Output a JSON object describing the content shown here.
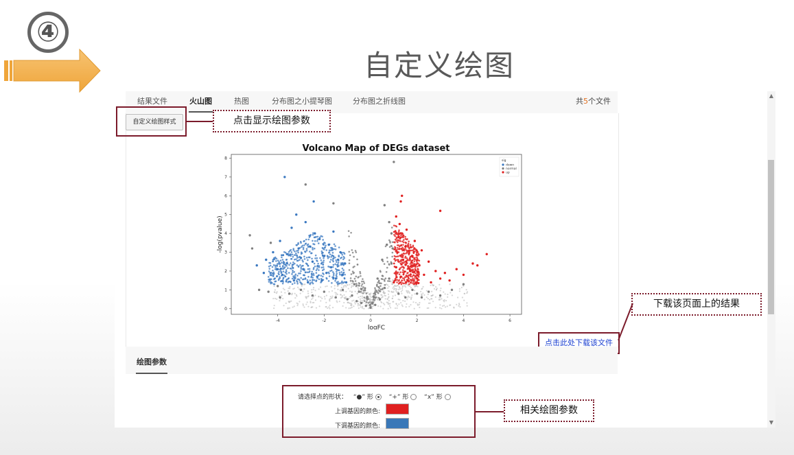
{
  "slide": {
    "step_number": "④",
    "title": "自定义绘图"
  },
  "tabs": [
    {
      "label": "结果文件",
      "active": false
    },
    {
      "label": "火山图",
      "active": true
    },
    {
      "label": "热图",
      "active": false
    },
    {
      "label": "分布图之小提琴图",
      "active": false
    },
    {
      "label": "分布图之折线图",
      "active": false
    }
  ],
  "file_count": {
    "prefix": "共",
    "count": "5",
    "suffix": "个文件"
  },
  "custom_button_label": "自定义绘图样式",
  "callouts": {
    "show_params": "点击显示绘图参数",
    "download_result": "下载该页面上的结果",
    "related_params": "相关绘图参数"
  },
  "download_link": "点击此处下载该文件",
  "params_section": {
    "title": "绘图参数",
    "shape_label": "请选择点的形状：",
    "shape_options": [
      {
        "label": "“●” 形",
        "checked": true
      },
      {
        "label": "“+” 形",
        "checked": false
      },
      {
        "label": "“x” 形",
        "checked": false
      }
    ],
    "up_color_label": "上调基因的颜色:",
    "down_color_label": "下调基因的颜色:",
    "up_color": "#e02020",
    "down_color": "#3a78b8"
  },
  "chart_data": {
    "type": "scatter",
    "title": "Volcano Map of DEGs dataset",
    "xlabel": "logFC",
    "ylabel": "-log(pvalue)",
    "xlim": [
      -6,
      6.5
    ],
    "ylim": [
      -0.3,
      8.2
    ],
    "xticks": [
      "-4",
      "-2",
      "0",
      "2",
      "4",
      "6"
    ],
    "xtick_values": [
      -4,
      -2,
      0,
      2,
      4,
      6
    ],
    "yticks": [
      "0",
      "1",
      "2",
      "3",
      "4",
      "5",
      "6",
      "7",
      "8"
    ],
    "ytick_values": [
      0,
      1,
      2,
      3,
      4,
      5,
      6,
      7,
      8
    ],
    "legend_title": "sig",
    "legend_position": "top-right",
    "series": [
      {
        "name": "down",
        "color": "#3a78c0",
        "points": [
          [
            -4.9,
            2.3
          ],
          [
            -4.5,
            2.6
          ],
          [
            -4.2,
            3.0
          ],
          [
            -3.9,
            3.6
          ],
          [
            -3.6,
            2.9
          ],
          [
            -3.4,
            4.3
          ],
          [
            -3.2,
            5.0
          ],
          [
            -3.1,
            3.2
          ],
          [
            -2.9,
            2.1
          ],
          [
            -2.8,
            4.6
          ],
          [
            -2.6,
            3.3
          ],
          [
            -2.5,
            2.5
          ],
          [
            -2.4,
            4.0
          ],
          [
            -2.3,
            1.7
          ],
          [
            -2.2,
            3.7
          ],
          [
            -2.0,
            2.8
          ],
          [
            -1.9,
            1.9
          ],
          [
            -1.8,
            3.4
          ],
          [
            -1.7,
            2.2
          ],
          [
            -1.6,
            4.1
          ],
          [
            -1.5,
            1.6
          ],
          [
            -1.4,
            2.6
          ],
          [
            -1.3,
            3.0
          ],
          [
            -1.2,
            1.8
          ],
          [
            -1.1,
            2.4
          ],
          [
            -1.05,
            1.4
          ],
          [
            -3.8,
            1.8
          ],
          [
            -4.0,
            2.1
          ],
          [
            -3.3,
            1.5
          ],
          [
            -2.7,
            1.4
          ],
          [
            -2.1,
            1.5
          ],
          [
            -3.0,
            2.7
          ],
          [
            -4.6,
            1.9
          ],
          [
            -2.45,
            5.7
          ],
          [
            -3.7,
            7.0
          ]
        ]
      },
      {
        "name": "normal",
        "color": "#808080",
        "points": [
          [
            -5.2,
            3.9
          ],
          [
            -4.8,
            1.0
          ],
          [
            -4.4,
            0.9
          ],
          [
            -4.0,
            1.2
          ],
          [
            -3.5,
            0.8
          ],
          [
            -3.0,
            1.0
          ],
          [
            -2.5,
            0.7
          ],
          [
            -2.0,
            0.9
          ],
          [
            -1.5,
            0.6
          ],
          [
            -1.2,
            1.0
          ],
          [
            -1.0,
            0.5
          ],
          [
            -0.8,
            0.7
          ],
          [
            -0.6,
            0.4
          ],
          [
            -0.4,
            0.3
          ],
          [
            -0.2,
            0.15
          ],
          [
            0.0,
            0.05
          ],
          [
            0.2,
            0.2
          ],
          [
            0.4,
            0.5
          ],
          [
            0.6,
            1.1
          ],
          [
            0.8,
            1.6
          ],
          [
            0.9,
            2.4
          ],
          [
            0.95,
            3.2
          ],
          [
            0.9,
            4.0
          ],
          [
            0.8,
            4.6
          ],
          [
            0.6,
            5.5
          ],
          [
            0.5,
            2.6
          ],
          [
            0.3,
            1.6
          ],
          [
            0.7,
            3.4
          ],
          [
            -0.7,
            1.3
          ],
          [
            -0.5,
            0.9
          ],
          [
            1.2,
            0.8
          ],
          [
            1.5,
            0.6
          ],
          [
            2.0,
            0.8
          ],
          [
            2.5,
            0.9
          ],
          [
            3.0,
            0.7
          ],
          [
            3.5,
            1.0
          ],
          [
            1.8,
            1.0
          ],
          [
            2.2,
            0.6
          ],
          [
            -2.8,
            6.6
          ],
          [
            1.0,
            7.8
          ],
          [
            -1.6,
            5.6
          ],
          [
            -4.3,
            3.5
          ],
          [
            -3.9,
            0.6
          ],
          [
            4.0,
            1.3
          ],
          [
            -5.1,
            3.2
          ]
        ]
      },
      {
        "name": "up",
        "color": "#e02020",
        "points": [
          [
            1.0,
            1.4
          ],
          [
            1.1,
            2.2
          ],
          [
            1.15,
            3.0
          ],
          [
            1.2,
            3.8
          ],
          [
            1.25,
            4.5
          ],
          [
            1.3,
            1.7
          ],
          [
            1.4,
            2.6
          ],
          [
            1.5,
            3.3
          ],
          [
            1.55,
            4.2
          ],
          [
            1.6,
            1.5
          ],
          [
            1.7,
            2.0
          ],
          [
            1.8,
            2.8
          ],
          [
            1.9,
            3.6
          ],
          [
            2.0,
            1.6
          ],
          [
            2.1,
            2.3
          ],
          [
            2.2,
            3.1
          ],
          [
            2.3,
            1.8
          ],
          [
            2.5,
            2.5
          ],
          [
            2.6,
            1.4
          ],
          [
            2.8,
            2.0
          ],
          [
            3.0,
            1.6
          ],
          [
            3.2,
            1.9
          ],
          [
            3.4,
            1.5
          ],
          [
            3.7,
            2.1
          ],
          [
            4.0,
            1.8
          ],
          [
            4.4,
            2.4
          ],
          [
            4.6,
            2.3
          ],
          [
            5.0,
            2.9
          ],
          [
            3.0,
            5.2
          ],
          [
            1.3,
            5.7
          ],
          [
            1.35,
            6.0
          ],
          [
            1.1,
            4.9
          ]
        ]
      }
    ]
  }
}
